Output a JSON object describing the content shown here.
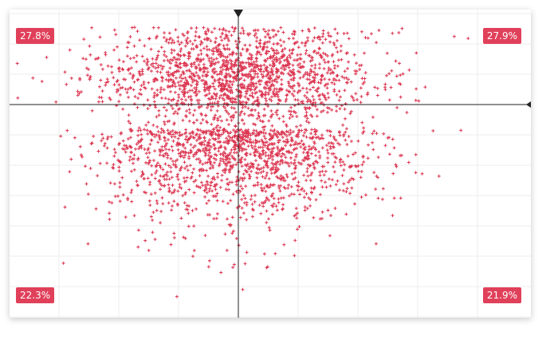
{
  "chart_data": {
    "type": "scatter",
    "marker": "plus",
    "color": "#dc3550",
    "grid": true,
    "quadrant_labels": {
      "top_left": "27.8%",
      "top_right": "27.9%",
      "bottom_left": "22.3%",
      "bottom_right": "21.9%"
    },
    "label_bg": "#e0405a",
    "axis_color": "#222222"
  }
}
